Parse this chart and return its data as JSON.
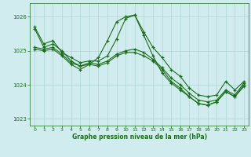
{
  "background_color": "#d0ecee",
  "grid_color": "#b0d4d4",
  "line_color": "#1a6e1a",
  "text_color": "#1a6e1a",
  "xlabel": "Graphe pression niveau de la mer (hPa)",
  "xlim": [
    -0.5,
    23.5
  ],
  "ylim": [
    1022.8,
    1026.4
  ],
  "yticks": [
    1023,
    1024,
    1025,
    1026
  ],
  "xticks": [
    0,
    1,
    2,
    3,
    4,
    5,
    6,
    7,
    8,
    9,
    10,
    11,
    12,
    13,
    14,
    15,
    16,
    17,
    18,
    19,
    20,
    21,
    22,
    23
  ],
  "lines": [
    {
      "x": [
        0,
        1,
        2,
        3,
        4,
        5,
        6,
        7,
        8,
        9,
        10,
        11,
        12,
        13,
        14,
        15,
        16,
        17,
        18,
        19,
        20,
        21,
        22,
        23
      ],
      "y": [
        1025.7,
        1025.2,
        1025.3,
        1024.95,
        1024.8,
        1024.65,
        1024.7,
        1024.7,
        1024.85,
        1025.35,
        1025.95,
        1026.05,
        1025.55,
        1025.1,
        1024.8,
        1024.45,
        1024.25,
        1023.9,
        1023.7,
        1023.65,
        1023.7,
        1024.1,
        1023.85,
        1024.1
      ]
    },
    {
      "x": [
        0,
        1,
        2,
        3,
        4,
        5,
        6,
        7,
        8,
        9,
        10,
        11,
        12,
        13,
        14,
        15,
        16,
        17,
        18,
        19,
        20,
        21,
        22,
        23
      ],
      "y": [
        1025.1,
        1025.05,
        1025.1,
        1024.9,
        1024.65,
        1024.55,
        1024.65,
        1024.6,
        1024.7,
        1024.9,
        1025.0,
        1025.05,
        1024.95,
        1024.75,
        1024.5,
        1024.2,
        1024.0,
        1023.75,
        1023.55,
        1023.5,
        1023.55,
        1023.85,
        1023.7,
        1024.05
      ]
    },
    {
      "x": [
        0,
        1,
        2,
        3,
        4,
        5,
        6,
        7,
        8,
        9,
        10,
        11,
        12,
        13,
        14,
        15,
        16,
        17,
        18,
        19,
        20,
        21,
        22,
        23
      ],
      "y": [
        1025.05,
        1025.0,
        1025.05,
        1024.85,
        1024.6,
        1024.45,
        1024.6,
        1024.55,
        1024.65,
        1024.85,
        1024.95,
        1024.95,
        1024.85,
        1024.7,
        1024.45,
        1024.1,
        1023.9,
        1023.65,
        1023.45,
        1023.4,
        1023.5,
        1023.8,
        1023.65,
        1024.0
      ]
    },
    {
      "x": [
        0,
        1,
        2,
        3,
        4,
        5,
        6,
        7,
        8,
        9,
        10,
        11,
        12,
        13,
        14,
        15,
        16,
        17,
        18,
        19,
        20,
        21,
        22,
        23
      ],
      "y": [
        1025.65,
        1025.1,
        1025.2,
        1025.0,
        1024.7,
        1024.55,
        1024.6,
        1024.8,
        1025.3,
        1025.85,
        1026.0,
        1026.05,
        1025.45,
        1024.85,
        1024.35,
        1024.05,
        1023.85,
        1023.65,
        1023.45,
        1023.4,
        1023.5,
        1023.8,
        1023.65,
        1023.95
      ]
    }
  ]
}
